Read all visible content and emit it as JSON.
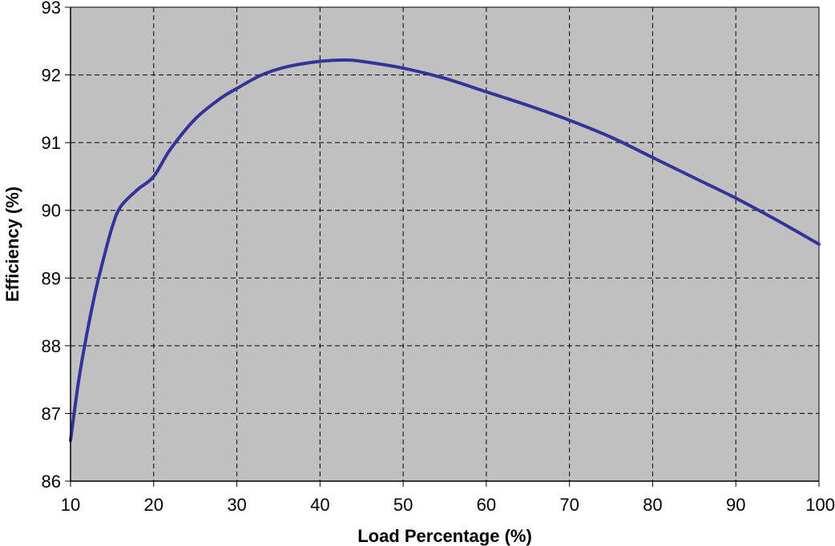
{
  "chart_data": {
    "type": "line",
    "title": "",
    "xlabel": "Load Percentage (%)",
    "ylabel": "Efficiency  (%)",
    "xlim": [
      10,
      100
    ],
    "ylim": [
      86,
      93
    ],
    "xticks": [
      10,
      20,
      30,
      40,
      50,
      60,
      70,
      80,
      90,
      100
    ],
    "yticks": [
      86,
      87,
      88,
      89,
      90,
      91,
      92,
      93
    ],
    "grid": true,
    "grid_style": "dashed",
    "legend": "none",
    "plot_background": "#c0c0c0",
    "series": [
      {
        "color": "#333399",
        "x": [
          10,
          11,
          12,
          13,
          14,
          15,
          16,
          18,
          20,
          22,
          25,
          28,
          30,
          33,
          36,
          40,
          43,
          45,
          50,
          55,
          60,
          65,
          70,
          75,
          80,
          85,
          90,
          95,
          100
        ],
        "y": [
          86.6,
          87.5,
          88.2,
          88.8,
          89.3,
          89.75,
          90.05,
          90.3,
          90.5,
          90.9,
          91.35,
          91.65,
          91.8,
          92.0,
          92.12,
          92.2,
          92.22,
          92.2,
          92.1,
          91.95,
          91.75,
          91.55,
          91.33,
          91.08,
          90.78,
          90.48,
          90.18,
          89.85,
          89.5
        ]
      }
    ]
  }
}
